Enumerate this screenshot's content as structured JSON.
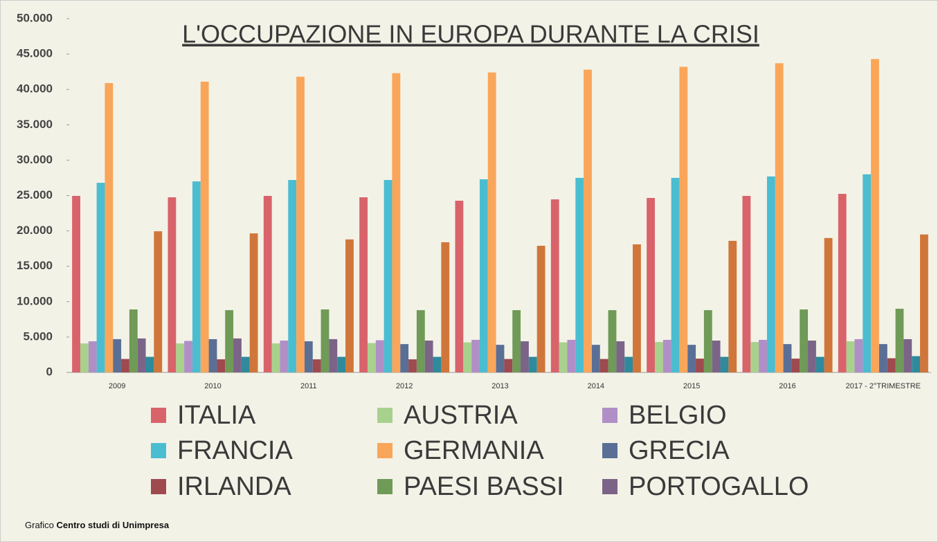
{
  "chart_data": {
    "type": "bar",
    "title": "L'OCCUPAZIONE IN EUROPA DURANTE LA CRISI",
    "categories": [
      "2009",
      "2010",
      "2011",
      "2012",
      "2013",
      "2014",
      "2015",
      "2016",
      "2017 - 2°TRIMESTRE"
    ],
    "series": [
      {
        "name": "ITALIA",
        "color": "#d9636b",
        "values": [
          24950,
          24750,
          24950,
          24750,
          24270,
          24460,
          24660,
          24950,
          25240
        ]
      },
      {
        "name": "AUSTRIA",
        "color": "#a9d18e",
        "values": [
          4100,
          4100,
          4100,
          4150,
          4250,
          4250,
          4300,
          4300,
          4400
        ]
      },
      {
        "name": "BELGIO",
        "color": "#b08fc7",
        "values": [
          4400,
          4450,
          4500,
          4550,
          4600,
          4600,
          4600,
          4600,
          4700
        ]
      },
      {
        "name": "FRANCIA",
        "color": "#4bbdd0",
        "values": [
          26800,
          27000,
          27200,
          27200,
          27300,
          27500,
          27500,
          27700,
          28000
        ]
      },
      {
        "name": "GERMANIA",
        "color": "#f9a65a",
        "values": [
          40900,
          41100,
          41800,
          42300,
          42400,
          42800,
          43200,
          43700,
          44300
        ]
      },
      {
        "name": "GRECIA",
        "color": "#5a6f96",
        "values": [
          4700,
          4700,
          4400,
          4000,
          3900,
          3900,
          3900,
          4000,
          4000
        ]
      },
      {
        "name": "IRLANDA",
        "color": "#9e4a4f",
        "values": [
          1900,
          1850,
          1850,
          1850,
          1900,
          1900,
          1950,
          1950,
          2000
        ]
      },
      {
        "name": "PAESI BASSI",
        "color": "#6f9a57",
        "values": [
          8900,
          8800,
          8900,
          8800,
          8800,
          8800,
          8800,
          8900,
          9000
        ]
      },
      {
        "name": "PORTOGALLO",
        "color": "#7b6488",
        "values": [
          4800,
          4800,
          4700,
          4500,
          4400,
          4400,
          4500,
          4500,
          4700
        ]
      },
      {
        "color": "#2f8a9c",
        "values": [
          2200,
          2200,
          2200,
          2200,
          2200,
          2200,
          2200,
          2200,
          2300
        ]
      },
      {
        "color": "#d0763a",
        "values": [
          19950,
          19650,
          18800,
          18400,
          17900,
          18100,
          18600,
          19000,
          19500
        ]
      }
    ],
    "ylim": [
      0,
      50000
    ],
    "yticks": [
      0,
      {
        "value": 5000,
        "label": "5.000"
      },
      {
        "value": 10000,
        "label": "10.000"
      },
      {
        "value": 15000,
        "label": "15.000"
      },
      {
        "value": 20000,
        "label": "20.000"
      },
      {
        "value": 25000,
        "label": "25.000"
      },
      {
        "value": 30000,
        "label": "30.000"
      },
      {
        "value": 35000,
        "label": "35.000"
      },
      {
        "value": 40000,
        "label": "40.000"
      },
      {
        "value": 45000,
        "label": "45.000"
      },
      {
        "value": 50000,
        "label": "50.000"
      }
    ],
    "grid": false,
    "source": {
      "prefix": "Grafico",
      "name": "Centro studi di Unimpresa"
    }
  }
}
